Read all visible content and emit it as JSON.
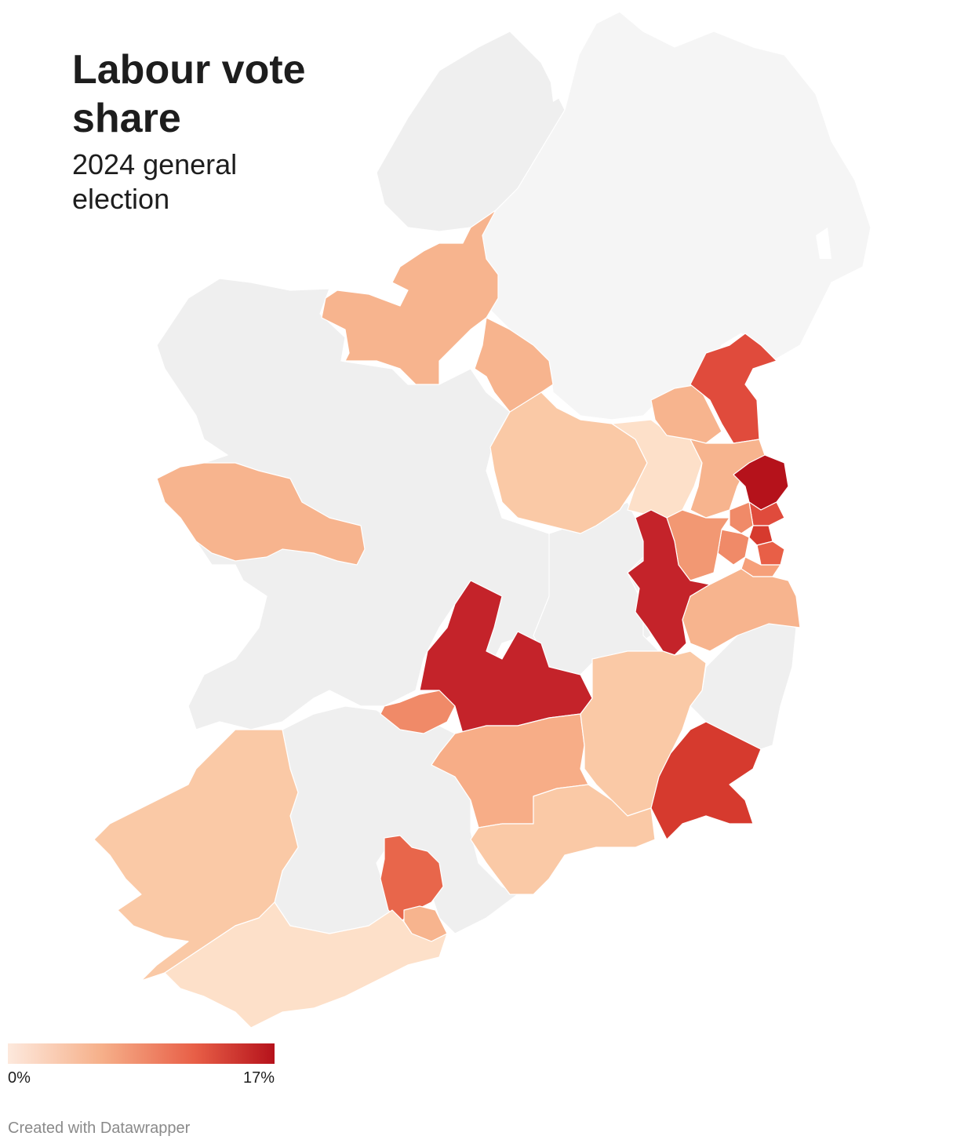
{
  "title": "Labour vote share",
  "subtitle": "2024 general election",
  "legend": {
    "min_label": "0%",
    "max_label": "17%",
    "color_low": "#fde5d6",
    "color_mid": "#f08a68",
    "color_high": "#b5121b"
  },
  "credit": "Created with Datawrapper",
  "colors": {
    "no_data": "#efefef",
    "northern_ireland": "#f5f5f5",
    "background": "#ffffff"
  }
}
